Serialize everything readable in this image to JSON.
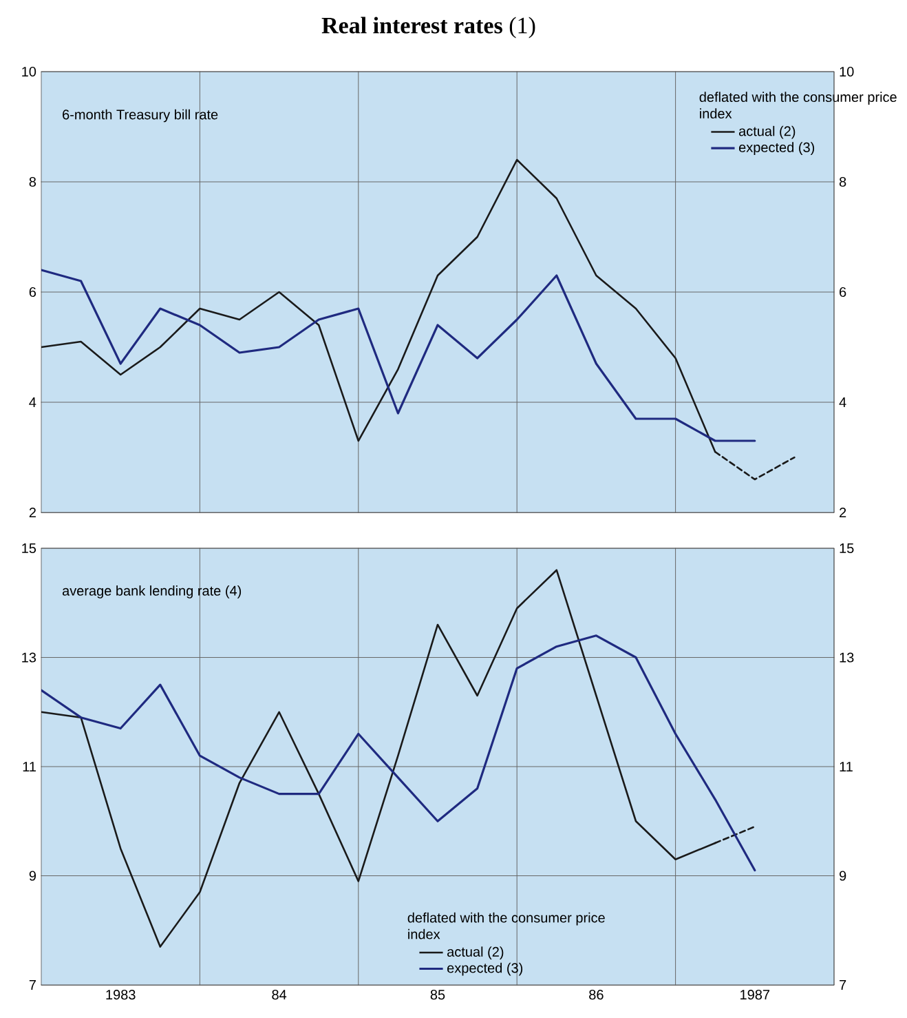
{
  "chart_data": [
    {
      "type": "line",
      "title": "**Real interest rates** (1)",
      "annotations": [
        "6-month Treasury bill rate"
      ],
      "legend_title": "deflated with the consumer price index",
      "legend": "top right",
      "grid": true,
      "tick_labels": "y",
      "xlim": [
        "1983-01",
        "1988-01"
      ],
      "xticks": [
        {
          "value": "1984-01",
          "label": null
        },
        {
          "value": "1985-01",
          "label": null
        },
        {
          "value": "1986-01",
          "label": null
        },
        {
          "value": "1987-01",
          "label": null
        }
      ],
      "ylim": [
        2,
        10
      ],
      "yticks": [
        2,
        4,
        6,
        8,
        10
      ],
      "y2lim": [
        2,
        10
      ],
      "y2ticks": [
        2,
        4,
        6,
        8,
        10
      ],
      "x": [
        "1983-01",
        "1983-04",
        "1983-07",
        "1983-10",
        "1984-01",
        "1984-04",
        "1984-07",
        "1984-10",
        "1985-01",
        "1985-04",
        "1985-07",
        "1985-10",
        "1986-01",
        "1986-04",
        "1986-07",
        "1986-10",
        "1987-01",
        "1987-04"
      ],
      "series": [
        {
          "name": "actual (2)",
          "color": "#1a1a1a",
          "line_style": "solid",
          "values": [
            5.0,
            5.1,
            4.5,
            5.0,
            5.7,
            5.5,
            6.0,
            5.4,
            3.3,
            4.6,
            6.3,
            7.0,
            8.4,
            7.7,
            6.3,
            5.7,
            4.8,
            3.1
          ]
        },
        {
          "color": "#1a1a1a",
          "line_style": "dashed",
          "x": [
            "1987-04",
            "1987-07",
            "1987-10"
          ],
          "values": [
            3.1,
            2.6,
            3.0
          ]
        },
        {
          "name": "expected (3)",
          "color": "#1f2a80",
          "line_style": "solid",
          "x": [
            "1983-01",
            "1983-04",
            "1983-07",
            "1983-10",
            "1984-01",
            "1984-04",
            "1984-07",
            "1984-10",
            "1985-01",
            "1985-04",
            "1985-07",
            "1985-10",
            "1986-01",
            "1986-04",
            "1986-07",
            "1986-10",
            "1987-01",
            "1987-04",
            "1987-07"
          ],
          "values": [
            6.4,
            6.2,
            4.7,
            5.7,
            5.4,
            4.9,
            5.0,
            5.5,
            5.7,
            3.8,
            5.4,
            4.8,
            5.5,
            6.3,
            4.7,
            3.7,
            3.7,
            3.3,
            3.3
          ]
        }
      ]
    },
    {
      "type": "line",
      "annotations": [
        "average bank lending rate (4)"
      ],
      "legend_title": "deflated with the consumer price index",
      "legend": "bottom",
      "grid": true,
      "xlim": [
        "1983-01",
        "1988-01"
      ],
      "xticks": [
        {
          "value": "1983-07",
          "label": "1983"
        },
        {
          "value": "1984-01",
          "label": null
        },
        {
          "value": "1984-07",
          "label": "84"
        },
        {
          "value": "1985-01",
          "label": null
        },
        {
          "value": "1985-07",
          "label": "85"
        },
        {
          "value": "1986-01",
          "label": null
        },
        {
          "value": "1986-07",
          "label": "86"
        },
        {
          "value": "1987-01",
          "label": null
        },
        {
          "value": "1987-07",
          "label": "1987"
        }
      ],
      "ylim": [
        7,
        15
      ],
      "yticks": [
        7,
        9,
        11,
        13,
        15
      ],
      "y2lim": [
        7,
        15
      ],
      "y2ticks": [
        7,
        9,
        11,
        13,
        15
      ],
      "x": [
        "1983-01",
        "1983-04",
        "1983-07",
        "1983-10",
        "1984-01",
        "1984-04",
        "1984-07",
        "1984-10",
        "1985-01",
        "1985-04",
        "1985-07",
        "1985-10",
        "1986-01",
        "1986-04",
        "1986-07",
        "1986-10",
        "1987-01",
        "1987-04"
      ],
      "series": [
        {
          "name": "actual (2)",
          "color": "#1a1a1a",
          "line_style": "solid",
          "values": [
            12.0,
            11.9,
            9.5,
            7.7,
            8.7,
            10.7,
            12.0,
            10.5,
            8.9,
            11.2,
            13.6,
            12.3,
            13.9,
            14.6,
            12.3,
            10.0,
            9.3,
            9.6
          ]
        },
        {
          "color": "#1a1a1a",
          "line_style": "dashed",
          "x": [
            "1987-04",
            "1987-07"
          ],
          "values": [
            9.6,
            9.9
          ]
        },
        {
          "name": "expected (3)",
          "color": "#1f2a80",
          "line_style": "solid",
          "x": [
            "1983-01",
            "1983-04",
            "1983-07",
            "1983-10",
            "1984-01",
            "1984-04",
            "1984-07",
            "1984-10",
            "1985-01",
            "1985-04",
            "1985-07",
            "1985-10",
            "1986-01",
            "1986-04",
            "1986-07",
            "1986-10",
            "1987-01",
            "1987-04",
            "1987-07"
          ],
          "values": [
            12.4,
            11.9,
            11.7,
            12.5,
            11.2,
            10.8,
            10.5,
            10.5,
            11.6,
            10.8,
            10.0,
            10.6,
            12.8,
            13.2,
            13.4,
            13.0,
            11.6,
            10.4,
            9.1
          ]
        }
      ]
    }
  ]
}
